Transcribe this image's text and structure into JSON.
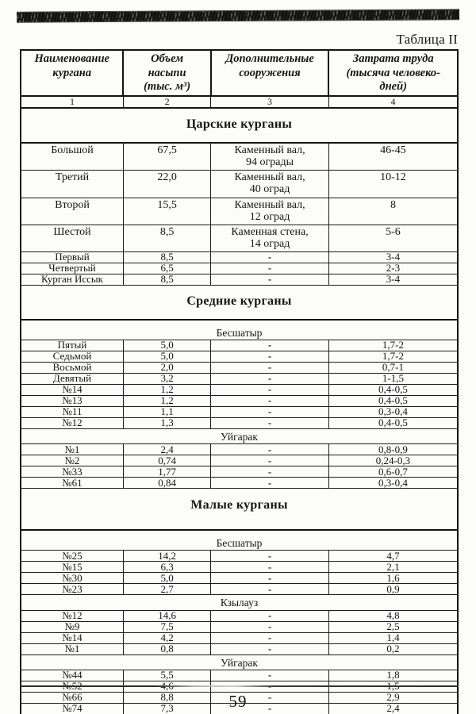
{
  "page": {
    "table_label": "Таблица II",
    "page_number": "59"
  },
  "table": {
    "headers": [
      "Наименование\nкургана",
      "Объем\nнасыпи\n(тыс. м³)",
      "Дополнительные\nсооружения",
      "Затрата труда\n(тысяча человеко-\nдней)"
    ],
    "column_numbers": [
      "1",
      "2",
      "3",
      "4"
    ],
    "sections": [
      {
        "title": "Царские курганы",
        "groups": [
          {
            "subtitle": "",
            "rows": [
              [
                "Большой",
                "67,5",
                "Каменный вал,\n94 ограды",
                "46-45"
              ],
              [
                "Третий",
                "22,0",
                "Каменный вал,\n40 оград",
                "10-12"
              ],
              [
                "Второй",
                "15,5",
                "Каменный вал,\n12 оград",
                "8"
              ],
              [
                "Шестой",
                "8,5",
                "Каменная стена,\n14 оград",
                "5-6"
              ],
              [
                "Первый",
                "8,5",
                "-",
                "3-4"
              ],
              [
                "Четвертый",
                "6,5",
                "-",
                "2-3"
              ],
              [
                "Курган Иссык",
                "8,5",
                "-",
                "3-4"
              ]
            ]
          }
        ]
      },
      {
        "title": "Средние курганы",
        "groups": [
          {
            "subtitle": "Бесшатыр",
            "rows": [
              [
                "Пятый",
                "5,0",
                "-",
                "1,7-2"
              ],
              [
                "Седьмой",
                "5,0",
                "-",
                "1,7-2"
              ],
              [
                "Восьмой",
                "2,0",
                "-",
                "0,7-1"
              ],
              [
                "Девятый",
                "3,2",
                "-",
                "1-1,5"
              ],
              [
                "№14",
                "1,2",
                "-",
                "0,4-0,5"
              ],
              [
                "№13",
                "1,2",
                "-",
                "0,4-0,5"
              ],
              [
                "№11",
                "1,1",
                "-",
                "0,3-0,4"
              ],
              [
                "№12",
                "1,3",
                "-",
                "0,4-0,5"
              ]
            ]
          },
          {
            "subtitle": "Уйгарак",
            "rows": [
              [
                "№1",
                "2,4",
                "-",
                "0,8-0,9"
              ],
              [
                "№2",
                "0,74",
                "-",
                "0,24-0,3"
              ],
              [
                "№33",
                "1,77",
                "-",
                "0,6-0,7"
              ],
              [
                "№61",
                "0,84",
                "-",
                "0,3-0,4"
              ]
            ]
          }
        ]
      },
      {
        "title": "Малые курганы",
        "groups": [
          {
            "subtitle": "Бесшатыр",
            "rows": [
              [
                "№25",
                "14,2",
                "-",
                "4,7"
              ],
              [
                "№15",
                "6,3",
                "-",
                "2,1"
              ],
              [
                "№30",
                "5,0",
                "-",
                "1,6"
              ],
              [
                "№23",
                "2,7",
                "-",
                "0,9"
              ]
            ]
          },
          {
            "subtitle": "Кзылауз",
            "rows": [
              [
                "№12",
                "14,6",
                "-",
                "4,8"
              ],
              [
                "№9",
                "7,5",
                "-",
                "2,5"
              ],
              [
                "№14",
                "4,2",
                "-",
                "1,4"
              ],
              [
                "№1",
                "0,8",
                "-",
                "0,2"
              ]
            ]
          },
          {
            "subtitle": "Уйгарак",
            "rows": [
              [
                "№44",
                "5,5",
                "-",
                "1,8"
              ],
              [
                "№52",
                "4,6",
                "-",
                "1,5"
              ],
              [
                "№66",
                "8,8",
                "-",
                "2,9"
              ],
              [
                "№74",
                "7,3",
                "-",
                "2,4"
              ]
            ]
          }
        ]
      }
    ]
  }
}
